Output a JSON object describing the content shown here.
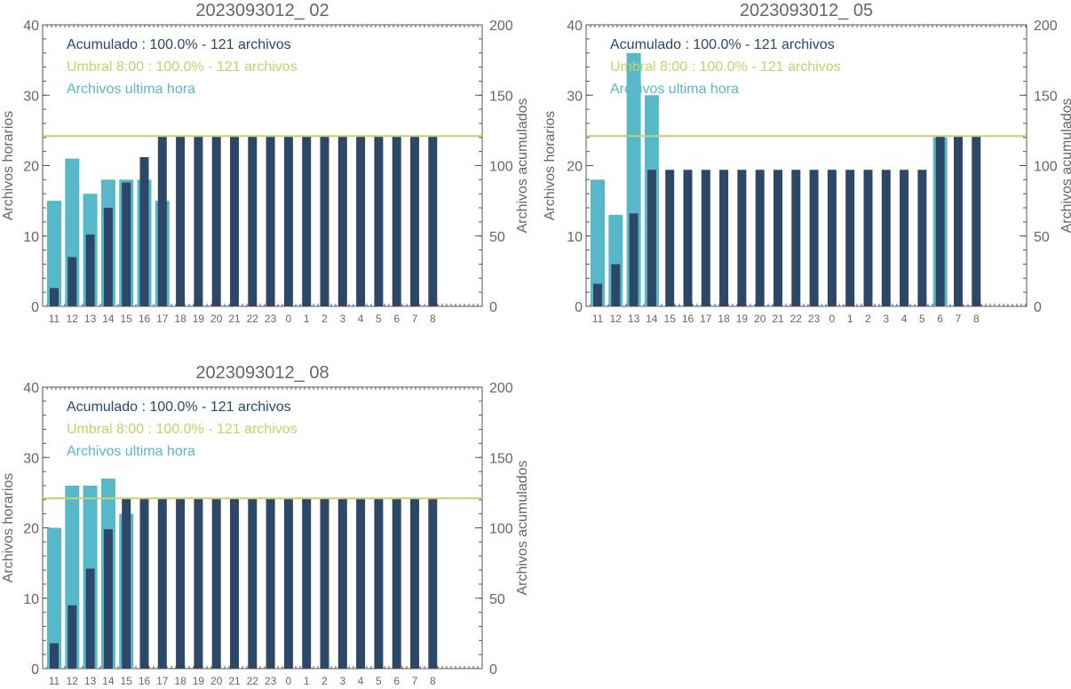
{
  "colors": {
    "hourly": "#56b8c8",
    "cumulative": "#2d4766",
    "threshold": "#c8d06a",
    "axis_text": "#666666",
    "title_text": "#666666"
  },
  "legend_labels": {
    "cumulative": "Acumulado : 100.0% - 121 archivos",
    "threshold": "Umbral 8:00 : 100.0% - 121 archivos",
    "hourly": "Archivos ultima hora"
  },
  "chart_data": [
    {
      "type": "bar",
      "title": "2023093012_ 02",
      "ylabel": "Archivos horarios",
      "ylabel_right": "Archivos acumulados",
      "ylim": [
        0,
        40
      ],
      "ylim_right": [
        0,
        200
      ],
      "yticks": [
        "0",
        "10",
        "20",
        "30",
        "40"
      ],
      "yticks_right": [
        "0",
        "50",
        "100",
        "150",
        "200"
      ],
      "categories": [
        "11",
        "12",
        "13",
        "14",
        "15",
        "16",
        "17",
        "18",
        "19",
        "20",
        "21",
        "22",
        "23",
        "0",
        "1",
        "2",
        "3",
        "4",
        "5",
        "6",
        "7",
        "8"
      ],
      "legend_placement": "top-left",
      "threshold": 121,
      "series": [
        {
          "name": "Archivos ultima hora",
          "axis": "left",
          "values": [
            15,
            21,
            16,
            18,
            18,
            18,
            15,
            0,
            0,
            0,
            0,
            0,
            0,
            0,
            0,
            0,
            0,
            0,
            0,
            0,
            0,
            0
          ]
        },
        {
          "name": "Acumulado",
          "axis": "right",
          "values": [
            13,
            35,
            51,
            70,
            88,
            106,
            121,
            121,
            121,
            121,
            121,
            121,
            121,
            121,
            121,
            121,
            121,
            121,
            121,
            121,
            121,
            121
          ]
        }
      ]
    },
    {
      "type": "bar",
      "title": "2023093012_ 05",
      "ylabel": "Archivos horarios",
      "ylabel_right": "Archivos acumulados",
      "ylim": [
        0,
        40
      ],
      "ylim_right": [
        0,
        200
      ],
      "yticks": [
        "0",
        "10",
        "20",
        "30",
        "40"
      ],
      "yticks_right": [
        "0",
        "50",
        "100",
        "150",
        "200"
      ],
      "categories": [
        "11",
        "12",
        "13",
        "14",
        "15",
        "16",
        "17",
        "18",
        "19",
        "20",
        "21",
        "22",
        "23",
        "0",
        "1",
        "2",
        "3",
        "4",
        "5",
        "6",
        "7",
        "8"
      ],
      "legend_placement": "top-left",
      "threshold": 121,
      "series": [
        {
          "name": "Archivos ultima hora",
          "axis": "left",
          "values": [
            18,
            13,
            36,
            30,
            0,
            0,
            0,
            0,
            0,
            0,
            0,
            0,
            0,
            0,
            0,
            0,
            0,
            0,
            0,
            24,
            0,
            0
          ]
        },
        {
          "name": "Acumulado",
          "axis": "right",
          "values": [
            16,
            30,
            66,
            97,
            97,
            97,
            97,
            97,
            97,
            97,
            97,
            97,
            97,
            97,
            97,
            97,
            97,
            97,
            97,
            121,
            121,
            121
          ]
        }
      ]
    },
    {
      "type": "bar",
      "title": "2023093012_ 08",
      "ylabel": "Archivos horarios",
      "ylabel_right": "Archivos acumulados",
      "ylim": [
        0,
        40
      ],
      "ylim_right": [
        0,
        200
      ],
      "yticks": [
        "0",
        "10",
        "20",
        "30",
        "40"
      ],
      "yticks_right": [
        "0",
        "50",
        "100",
        "150",
        "200"
      ],
      "categories": [
        "11",
        "12",
        "13",
        "14",
        "15",
        "16",
        "17",
        "18",
        "19",
        "20",
        "21",
        "22",
        "23",
        "0",
        "1",
        "2",
        "3",
        "4",
        "5",
        "6",
        "7",
        "8"
      ],
      "legend_placement": "top-left",
      "threshold": 121,
      "series": [
        {
          "name": "Archivos ultima hora",
          "axis": "left",
          "values": [
            20,
            26,
            26,
            27,
            22,
            0,
            0,
            0,
            0,
            0,
            0,
            0,
            0,
            0,
            0,
            0,
            0,
            0,
            0,
            0,
            0,
            0
          ]
        },
        {
          "name": "Acumulado",
          "axis": "right",
          "values": [
            18,
            45,
            71,
            99,
            121,
            121,
            121,
            121,
            121,
            121,
            121,
            121,
            121,
            121,
            121,
            121,
            121,
            121,
            121,
            121,
            121,
            121
          ]
        }
      ]
    }
  ]
}
